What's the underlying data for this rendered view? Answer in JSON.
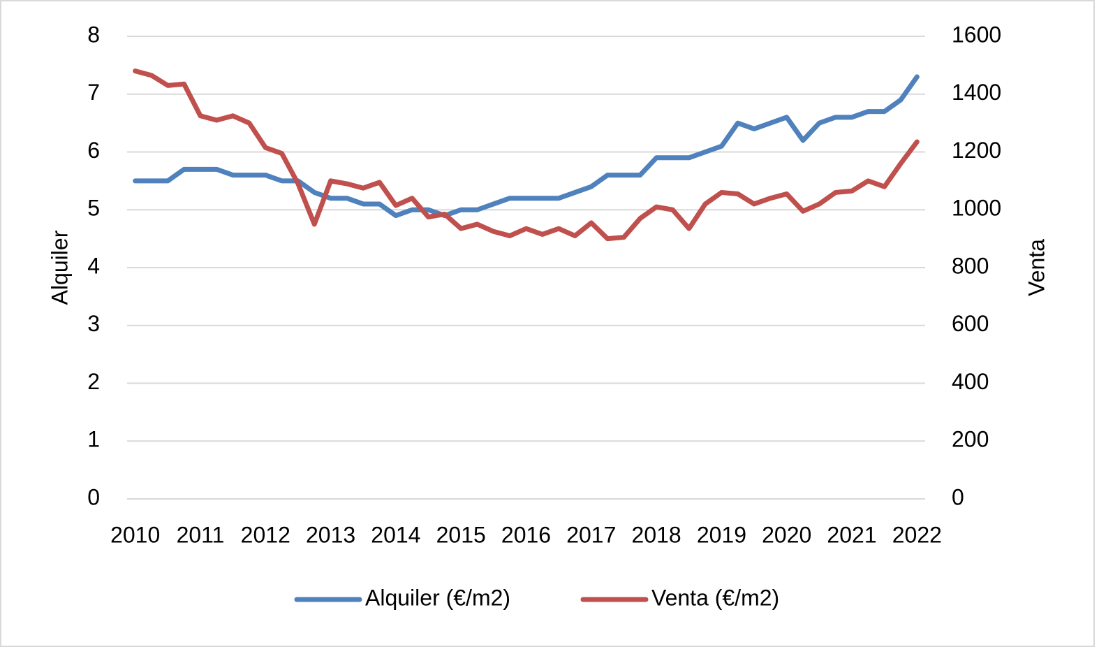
{
  "chart_data": {
    "type": "line",
    "categories": [
      "2010",
      null,
      null,
      null,
      "2011",
      null,
      null,
      null,
      "2012",
      null,
      null,
      null,
      "2013",
      null,
      null,
      null,
      "2014",
      null,
      null,
      null,
      "2015",
      null,
      null,
      null,
      "2016",
      null,
      null,
      null,
      "2017",
      null,
      null,
      null,
      "2018",
      null,
      null,
      null,
      "2019",
      null,
      null,
      null,
      "2020",
      null,
      null,
      null,
      "2021",
      null,
      null,
      null,
      "2022"
    ],
    "y_label": "Alquiler",
    "y2_label": "Venta",
    "ylim": [
      0,
      8
    ],
    "yticks": [
      0,
      1,
      2,
      3,
      4,
      5,
      6,
      7,
      8
    ],
    "y2lim": [
      0,
      1600
    ],
    "y2ticks": [
      0,
      200,
      400,
      600,
      800,
      1000,
      1200,
      1400,
      1600
    ],
    "grid": true,
    "legend": "bottom",
    "series": [
      {
        "name": "Alquiler (€/m2)",
        "color": "#4f81bd",
        "values": [
          5.5,
          5.5,
          5.5,
          5.7,
          5.7,
          5.7,
          5.6,
          5.6,
          5.6,
          5.5,
          5.5,
          5.3,
          5.2,
          5.2,
          5.1,
          5.1,
          4.9,
          5.0,
          5.0,
          4.9,
          5.0,
          5.0,
          5.1,
          5.2,
          5.2,
          5.2,
          5.2,
          5.3,
          5.4,
          5.6,
          5.6,
          5.6,
          5.9,
          5.9,
          5.9,
          6.0,
          6.1,
          6.5,
          6.4,
          6.5,
          6.6,
          6.2,
          6.5,
          6.6,
          6.6,
          6.7,
          6.7,
          6.9,
          7.3
        ]
      },
      {
        "name": "Venta (€/m2)",
        "color": "#c0504d",
        "axis": "y2",
        "values": [
          1480,
          1465,
          1430,
          1435,
          1325,
          1310,
          1325,
          1300,
          1215,
          1195,
          1090,
          950,
          1100,
          1090,
          1075,
          1095,
          1015,
          1040,
          975,
          985,
          935,
          950,
          925,
          910,
          935,
          915,
          935,
          910,
          955,
          900,
          905,
          970,
          1010,
          1000,
          935,
          1020,
          1060,
          1055,
          1020,
          1040,
          1055,
          995,
          1020,
          1060,
          1065,
          1100,
          1080,
          1160,
          1235
        ]
      }
    ]
  }
}
